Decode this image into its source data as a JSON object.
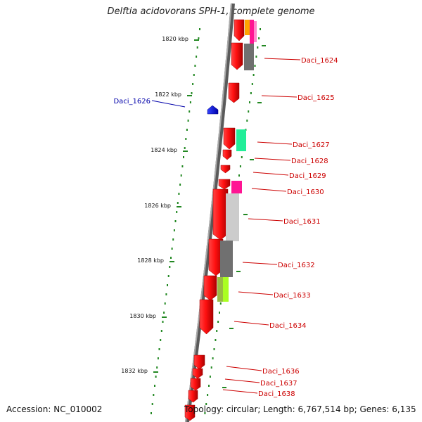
{
  "title": "Delftia acidovorans SPH-1, complete genome",
  "footer": {
    "accession": "Accession: NC_010002",
    "topology": "Topology: circular; Length: 6,767,514 bp; Genes: 6,135"
  },
  "scale_marks": [
    "1820 kbp",
    "1822 kbp",
    "1824 kbp",
    "1826 kbp",
    "1828 kbp",
    "1830 kbp",
    "1832 kbp"
  ],
  "gene_labels": [
    {
      "text": "Daci_1624",
      "color": "#cc0000"
    },
    {
      "text": "Daci_1625",
      "color": "#cc0000"
    },
    {
      "text": "Daci_1626",
      "color": "#0000aa"
    },
    {
      "text": "Daci_1627",
      "color": "#cc0000"
    },
    {
      "text": "Daci_1628",
      "color": "#cc0000"
    },
    {
      "text": "Daci_1629",
      "color": "#cc0000"
    },
    {
      "text": "Daci_1630",
      "color": "#cc0000"
    },
    {
      "text": "Daci_1631",
      "color": "#cc0000"
    },
    {
      "text": "Daci_1632",
      "color": "#cc0000"
    },
    {
      "text": "Daci_1633",
      "color": "#cc0000"
    },
    {
      "text": "Daci_1634",
      "color": "#cc0000"
    },
    {
      "text": "Daci_1636",
      "color": "#cc0000"
    },
    {
      "text": "Daci_1637",
      "color": "#cc0000"
    },
    {
      "text": "Daci_1638",
      "color": "#cc0000"
    }
  ],
  "colors": {
    "gene_forward": "#ee1111",
    "gene_reverse": "#1111dd",
    "backbone": "#888888",
    "ruler_dots": "#228822",
    "cog_pink": "#ff1493",
    "cog_orange": "#ffa500",
    "cog_teal": "#22ee99",
    "cog_gray_dark": "#707070",
    "cog_gray_light": "#cccccc",
    "cog_lime": "#aaff22"
  }
}
